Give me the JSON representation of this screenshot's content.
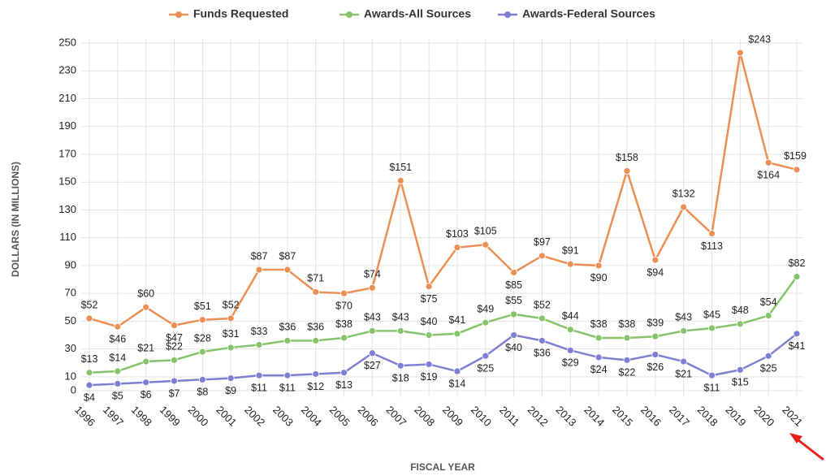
{
  "chart_data": {
    "type": "line",
    "categories": [
      "1996",
      "1997",
      "1998",
      "1999",
      "2000",
      "2001",
      "2002",
      "2003",
      "2004",
      "2005",
      "2006",
      "2007",
      "2008",
      "2009",
      "2010",
      "2011",
      "2012",
      "2013",
      "2014",
      "2015",
      "2016",
      "2017",
      "2018",
      "2019",
      "2020",
      "2021"
    ],
    "series": [
      {
        "name": "Funds Requested",
        "color": "#eb8f55",
        "values": [
          52,
          46,
          60,
          47,
          51,
          52,
          87,
          87,
          71,
          70,
          74,
          151,
          75,
          103,
          105,
          85,
          97,
          91,
          90,
          158,
          94,
          132,
          113,
          243,
          164,
          159
        ],
        "value_labels": [
          "$52",
          "$46",
          "$60",
          "$47",
          "$51",
          "$52",
          "$87",
          "$87",
          "$71",
          "$70",
          "$74",
          "$151",
          "$75",
          "$103",
          "$105",
          "$85",
          "$97",
          "$91",
          "$90",
          "$158",
          "$94",
          "$132",
          "$113",
          "$243",
          "$164",
          "$159"
        ]
      },
      {
        "name": "Awards-All Sources",
        "color": "#86c36a",
        "values": [
          13,
          14,
          21,
          22,
          28,
          31,
          33,
          36,
          36,
          38,
          43,
          43,
          40,
          41,
          49,
          55,
          52,
          44,
          38,
          38,
          39,
          43,
          45,
          48,
          54,
          82
        ],
        "value_labels": [
          "$13",
          "$14",
          "$21",
          "$22",
          "$28",
          "$31",
          "$33",
          "$36",
          "$36",
          "$38",
          "$43",
          "$43",
          "$40",
          "$41",
          "$49",
          "$55",
          "$52",
          "$44",
          "$38",
          "$38",
          "$39",
          "$43",
          "$45",
          "$48",
          "$54",
          "$82"
        ]
      },
      {
        "name": "Awards-Federal Sources",
        "color": "#7d80d2",
        "values": [
          4,
          5,
          6,
          7,
          8,
          9,
          11,
          11,
          12,
          13,
          27,
          18,
          19,
          14,
          25,
          40,
          36,
          29,
          24,
          22,
          26,
          21,
          11,
          15,
          25,
          41
        ],
        "value_labels": [
          "$4",
          "$5",
          "$6",
          "$7",
          "$8",
          "$9",
          "$11",
          "$11",
          "$12",
          "$13",
          "$27",
          "$18",
          "$19",
          "$14",
          "$25",
          "$40",
          "$36",
          "$29",
          "$24",
          "$22",
          "$26",
          "$21",
          "$11",
          "$15",
          "$25",
          "$41"
        ]
      }
    ],
    "x_label": "FISCAL YEAR",
    "y_label": "DOLLARS (IN MILLIONS)",
    "ylim": [
      0,
      250
    ],
    "yticks": [
      0,
      10,
      30,
      50,
      70,
      90,
      110,
      130,
      150,
      170,
      190,
      210,
      230,
      250
    ],
    "grid": true,
    "legend": "top"
  }
}
